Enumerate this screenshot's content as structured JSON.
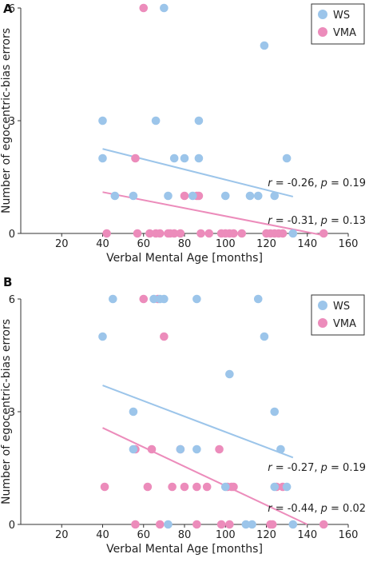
{
  "chart_data": [
    {
      "type": "scatter",
      "panel_label": "A",
      "xlabel": "Verbal Mental Age [months]",
      "ylabel": "Number of egocentric-bias errors",
      "xlim": [
        0,
        160
      ],
      "ylim": [
        0,
        6
      ],
      "x_ticks": [
        "20",
        "40",
        "60",
        "80",
        "100",
        "120",
        "140",
        "160"
      ],
      "y_ticks": [
        "0",
        "3",
        "6"
      ],
      "grid": false,
      "legend_position": "top-right",
      "series": [
        {
          "name": "WS",
          "color": "#9cc5ea",
          "points": [
            [
              40,
              3
            ],
            [
              40,
              2
            ],
            [
              46,
              1
            ],
            [
              55,
              1
            ],
            [
              66,
              3
            ],
            [
              70,
              6
            ],
            [
              72,
              1
            ],
            [
              75,
              2
            ],
            [
              80,
              2
            ],
            [
              84,
              1
            ],
            [
              87,
              3
            ],
            [
              87,
              2
            ],
            [
              100,
              1
            ],
            [
              112,
              1
            ],
            [
              116,
              1
            ],
            [
              119,
              5
            ],
            [
              124,
              1
            ],
            [
              130,
              2
            ],
            [
              133,
              0
            ]
          ],
          "fit": [
            [
              40,
              2.25
            ],
            [
              133,
              0.98
            ]
          ],
          "stats": {
            "r": "-0.26",
            "p": "0.19"
          }
        },
        {
          "name": "VMA",
          "color": "#ec8cbb",
          "points": [
            [
              42,
              0
            ],
            [
              56,
              2
            ],
            [
              57,
              0
            ],
            [
              60,
              6
            ],
            [
              63,
              0
            ],
            [
              66,
              0
            ],
            [
              68,
              0
            ],
            [
              72,
              0
            ],
            [
              73,
              0
            ],
            [
              75,
              0
            ],
            [
              78,
              0
            ],
            [
              80,
              1
            ],
            [
              86,
              1
            ],
            [
              87,
              1
            ],
            [
              88,
              0
            ],
            [
              92,
              0
            ],
            [
              98,
              0
            ],
            [
              100,
              0
            ],
            [
              102,
              0
            ],
            [
              104,
              0
            ],
            [
              108,
              0
            ],
            [
              120,
              0
            ],
            [
              122,
              0
            ],
            [
              124,
              0
            ],
            [
              126,
              0
            ],
            [
              128,
              0
            ],
            [
              148,
              0
            ]
          ],
          "fit": [
            [
              40,
              1.1
            ],
            [
              148,
              -0.05
            ]
          ],
          "stats": {
            "r": "-0.31",
            "p": "0.13"
          }
        }
      ]
    },
    {
      "type": "scatter",
      "panel_label": "B",
      "xlabel": "Verbal Mental Age [months]",
      "ylabel": "Number of egocentric-bias errors",
      "xlim": [
        0,
        160
      ],
      "ylim": [
        0,
        6
      ],
      "x_ticks": [
        "20",
        "40",
        "60",
        "80",
        "100",
        "120",
        "140",
        "160"
      ],
      "y_ticks": [
        "0",
        "3",
        "6"
      ],
      "grid": false,
      "legend_position": "top-right",
      "series": [
        {
          "name": "WS",
          "color": "#9cc5ea",
          "points": [
            [
              40,
              5
            ],
            [
              45,
              6
            ],
            [
              55,
              3
            ],
            [
              55,
              2
            ],
            [
              65,
              6
            ],
            [
              68,
              6
            ],
            [
              70,
              6
            ],
            [
              72,
              0
            ],
            [
              78,
              2
            ],
            [
              86,
              6
            ],
            [
              86,
              2
            ],
            [
              100,
              1
            ],
            [
              102,
              4
            ],
            [
              110,
              0
            ],
            [
              113,
              0
            ],
            [
              116,
              6
            ],
            [
              119,
              5
            ],
            [
              124,
              3
            ],
            [
              124,
              1
            ],
            [
              127,
              2
            ],
            [
              130,
              1
            ],
            [
              133,
              0
            ]
          ],
          "fit": [
            [
              40,
              3.7
            ],
            [
              133,
              1.78
            ]
          ],
          "stats": {
            "r": "-0.27",
            "p": "0.19"
          }
        },
        {
          "name": "VMA",
          "color": "#ec8cbb",
          "points": [
            [
              41,
              1
            ],
            [
              56,
              2
            ],
            [
              56,
              0
            ],
            [
              60,
              6
            ],
            [
              62,
              1
            ],
            [
              64,
              2
            ],
            [
              67,
              6
            ],
            [
              68,
              0
            ],
            [
              70,
              5
            ],
            [
              74,
              1
            ],
            [
              78,
              2
            ],
            [
              80,
              1
            ],
            [
              86,
              1
            ],
            [
              86,
              0
            ],
            [
              91,
              1
            ],
            [
              97,
              2
            ],
            [
              98,
              0
            ],
            [
              101,
              1
            ],
            [
              102,
              0
            ],
            [
              103,
              1
            ],
            [
              104,
              1
            ],
            [
              122,
              0
            ],
            [
              123,
              0
            ],
            [
              125,
              1
            ],
            [
              128,
              1
            ],
            [
              148,
              0
            ]
          ],
          "fit": [
            [
              40,
              2.57
            ],
            [
              140,
              0
            ]
          ],
          "stats": {
            "r": "-0.44",
            "p": "0.02"
          }
        }
      ]
    }
  ]
}
